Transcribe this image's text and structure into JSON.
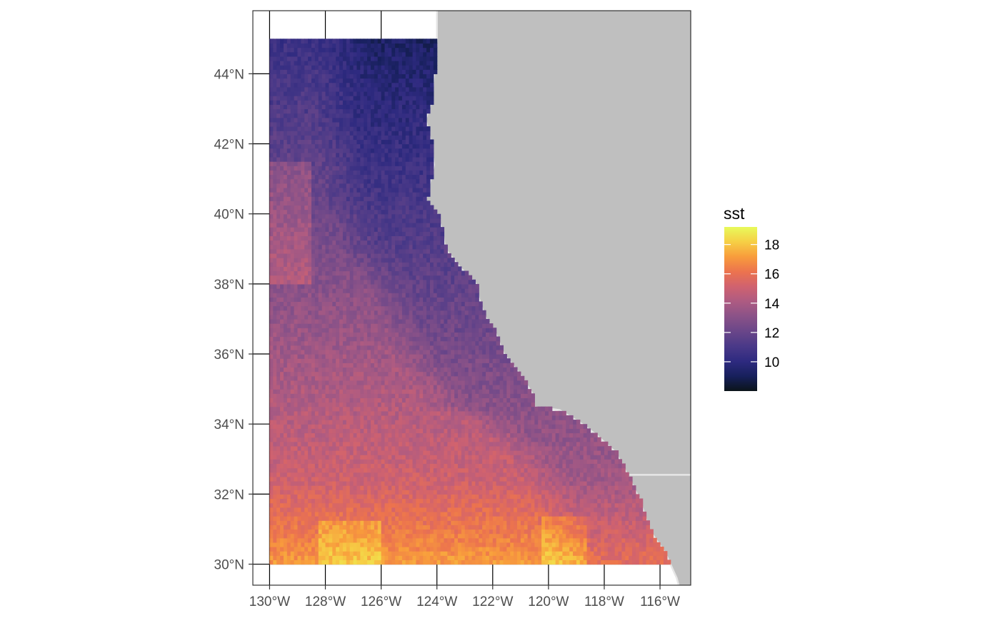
{
  "map": {
    "type": "raster",
    "variable": "sst",
    "projection": "lon-lat",
    "lon_range": [
      -130.6,
      -114.9
    ],
    "lat_range": [
      29.4,
      45.8
    ],
    "data_extent": {
      "lon": [
        -130,
        -115.5
      ],
      "lat": [
        30,
        45
      ]
    },
    "land_color": "#bfbfbf",
    "border_color": "#e6e6e6",
    "grid": true,
    "grid_color": "#000000",
    "x_ticks": [
      {
        "value": -130,
        "label": "130°W"
      },
      {
        "value": -128,
        "label": "128°W"
      },
      {
        "value": -126,
        "label": "126°W"
      },
      {
        "value": -124,
        "label": "124°W"
      },
      {
        "value": -122,
        "label": "122°W"
      },
      {
        "value": -120,
        "label": "120°W"
      },
      {
        "value": -118,
        "label": "118°W"
      },
      {
        "value": -116,
        "label": "116°W"
      }
    ],
    "y_ticks": [
      {
        "value": 30,
        "label": "30°N"
      },
      {
        "value": 32,
        "label": "32°N"
      },
      {
        "value": 34,
        "label": "34°N"
      },
      {
        "value": 36,
        "label": "36°N"
      },
      {
        "value": 38,
        "label": "38°N"
      },
      {
        "value": 40,
        "label": "40°N"
      },
      {
        "value": 42,
        "label": "42°N"
      },
      {
        "value": 44,
        "label": "44°N"
      }
    ],
    "coastline": [
      [
        -124.0,
        46.0
      ],
      [
        -124.0,
        45.0
      ],
      [
        -124.1,
        44.0
      ],
      [
        -124.2,
        43.2
      ],
      [
        -124.4,
        42.7
      ],
      [
        -124.2,
        42.0
      ],
      [
        -124.1,
        41.4
      ],
      [
        -124.25,
        40.9
      ],
      [
        -124.4,
        40.4
      ],
      [
        -124.0,
        40.0
      ],
      [
        -123.8,
        39.5
      ],
      [
        -123.7,
        39.0
      ],
      [
        -123.2,
        38.5
      ],
      [
        -122.6,
        38.0
      ],
      [
        -122.5,
        37.6
      ],
      [
        -122.3,
        37.1
      ],
      [
        -121.9,
        36.6
      ],
      [
        -121.6,
        36.0
      ],
      [
        -121.0,
        35.4
      ],
      [
        -120.6,
        34.9
      ],
      [
        -120.6,
        34.5
      ],
      [
        -119.6,
        34.4
      ],
      [
        -118.8,
        34.0
      ],
      [
        -118.3,
        33.7
      ],
      [
        -117.6,
        33.2
      ],
      [
        -117.2,
        32.6
      ],
      [
        -116.7,
        31.8
      ],
      [
        -116.4,
        31.0
      ],
      [
        -115.8,
        30.3
      ],
      [
        -115.4,
        29.6
      ],
      [
        -115.2,
        29.0
      ]
    ],
    "border_line": {
      "lat": 32.55,
      "lon_from": -117.1,
      "lon_to": -114.8
    }
  },
  "legend": {
    "title": "sst",
    "min": 8,
    "max": 19.2,
    "ticks": [
      {
        "value": 10,
        "label": "10"
      },
      {
        "value": 12,
        "label": "12"
      },
      {
        "value": 14,
        "label": "14"
      },
      {
        "value": 16,
        "label": "16"
      },
      {
        "value": 18,
        "label": "18"
      }
    ],
    "colors": [
      "#0b1419",
      "#17205c",
      "#2e2a80",
      "#4a3988",
      "#6a4689",
      "#8a5288",
      "#ad5b82",
      "#d0626f",
      "#ec734e",
      "#f89c3c",
      "#f6cf45",
      "#e8fa5b"
    ]
  }
}
